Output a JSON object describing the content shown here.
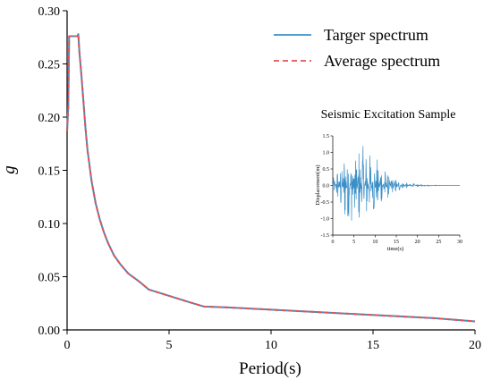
{
  "chart_data": {
    "type": "line",
    "xlabel": "Period(s)",
    "ylabel": "g",
    "xlim": [
      0,
      20
    ],
    "ylim": [
      0,
      0.3
    ],
    "xticks": [
      "0",
      "5",
      "10",
      "15",
      "20"
    ],
    "yticks": [
      "0.00",
      "0.05",
      "0.10",
      "0.15",
      "0.20",
      "0.25",
      "0.30"
    ],
    "legend_position": "top-right",
    "series": [
      {
        "name": "Targer spectrum",
        "color": "#3b8fc7",
        "style": "solid",
        "x": [
          0,
          0.06,
          0.1,
          0.15,
          0.5,
          0.55,
          0.6,
          0.7,
          0.8,
          0.9,
          1.0,
          1.2,
          1.4,
          1.6,
          1.8,
          2.0,
          2.3,
          2.6,
          3.0,
          3.5,
          4.0,
          5.0,
          6.0,
          6.7,
          8.0,
          10.0,
          12.0,
          14.0,
          16.0,
          18.0,
          20.0
        ],
        "y": [
          0.187,
          0.21,
          0.276,
          0.276,
          0.276,
          0.278,
          0.262,
          0.24,
          0.215,
          0.19,
          0.169,
          0.14,
          0.119,
          0.104,
          0.092,
          0.082,
          0.07,
          0.062,
          0.053,
          0.046,
          0.038,
          0.032,
          0.026,
          0.022,
          0.021,
          0.019,
          0.017,
          0.015,
          0.013,
          0.011,
          0.008
        ]
      },
      {
        "name": "Average spectrum",
        "color": "#e05555",
        "style": "dashed",
        "x": [
          0,
          0.06,
          0.1,
          0.15,
          0.5,
          0.55,
          0.6,
          0.7,
          0.8,
          0.9,
          1.0,
          1.2,
          1.4,
          1.6,
          1.8,
          2.0,
          2.3,
          2.6,
          3.0,
          3.5,
          4.0,
          5.0,
          6.0,
          6.7,
          8.0,
          10.0,
          12.0,
          14.0,
          16.0,
          18.0,
          20.0
        ],
        "y": [
          0.187,
          0.21,
          0.276,
          0.276,
          0.276,
          0.278,
          0.262,
          0.24,
          0.215,
          0.19,
          0.169,
          0.14,
          0.119,
          0.104,
          0.092,
          0.082,
          0.07,
          0.062,
          0.053,
          0.046,
          0.038,
          0.032,
          0.026,
          0.022,
          0.021,
          0.019,
          0.017,
          0.015,
          0.013,
          0.011,
          0.008
        ]
      }
    ],
    "inset": {
      "type": "line",
      "title": "Seismic Excitation Sample",
      "xlabel": "time(s)",
      "ylabel": "Displacement(m)",
      "xlim": [
        0,
        30
      ],
      "ylim": [
        -1.5,
        1.5
      ],
      "xticks": [
        "0",
        "5",
        "10",
        "15",
        "20",
        "25",
        "30"
      ],
      "yticks": [
        "1.5",
        "1.0",
        "0.5",
        "0.0",
        "-0.5",
        "-1.0",
        "-1.5"
      ],
      "color": "#3b8fc7",
      "envelope": {
        "t": [
          0,
          1,
          2,
          3,
          4,
          5,
          6,
          7,
          8,
          9,
          10,
          11,
          12,
          13,
          14,
          15,
          16,
          17,
          18,
          20,
          22,
          25,
          30
        ],
        "amp": [
          0.2,
          0.45,
          0.8,
          1.2,
          1.1,
          1.3,
          1.15,
          1.25,
          1.05,
          1.0,
          0.9,
          0.75,
          0.6,
          0.45,
          0.3,
          0.22,
          0.15,
          0.1,
          0.07,
          0.04,
          0.02,
          0.01,
          0.0
        ]
      }
    }
  }
}
